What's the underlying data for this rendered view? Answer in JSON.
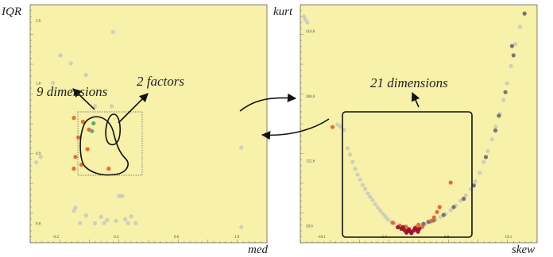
{
  "colors": {
    "panel_bg": "#f7f1a9",
    "point_gray": "#c8c8c0",
    "point_dark": "#6e6e6e",
    "point_orange": "#e8632a",
    "point_green": "#58a86a",
    "point_red": "#9a1030",
    "ink": "#111111"
  },
  "left_plot": {
    "xlabel": "med",
    "ylabel": "IQR",
    "x_ticks": [
      "-0.2",
      "0.2",
      "0.6",
      "1.0"
    ],
    "y_ticks": [
      "2.6",
      "1.8",
      "0.9",
      "0.0"
    ],
    "annotations": {
      "dimensions": "9 dimensions",
      "factors": "2 factors"
    }
  },
  "right_plot": {
    "xlabel": "skew",
    "ylabel": "kurt",
    "x_ticks": [
      "-18.1",
      "-5.7",
      "6.8",
      "19.1"
    ],
    "y_ticks": [
      "416.6",
      "284.6",
      "152.6",
      "20.6"
    ],
    "annotations": {
      "dimensions": "21 dimensions"
    }
  },
  "chart_data": [
    {
      "type": "scatter",
      "xlabel": "med",
      "ylabel": "IQR",
      "x_ticks": [
        -0.2,
        0.2,
        0.6,
        1.0
      ],
      "y_ticks": [
        0.0,
        0.9,
        1.8,
        2.6
      ],
      "xlim": [
        -0.37,
        1.2
      ],
      "ylim": [
        -0.25,
        2.8
      ],
      "grid": false,
      "series": [
        {
          "color": "gray",
          "points": [
            [
              0.18,
              2.45
            ],
            [
              -0.1,
              2.05
            ],
            [
              -0.17,
              2.15
            ],
            [
              0.0,
              1.9
            ],
            [
              -0.22,
              1.8
            ],
            [
              -0.3,
              0.85
            ],
            [
              -0.33,
              0.78
            ],
            [
              0.06,
              1.5
            ],
            [
              0.17,
              1.5
            ],
            [
              1.03,
              0.97
            ],
            [
              0.22,
              0.35
            ],
            [
              0.24,
              0.35
            ],
            [
              -0.07,
              0.2
            ],
            [
              -0.08,
              0.16
            ],
            [
              0.0,
              0.1
            ],
            [
              0.1,
              0.08
            ],
            [
              0.14,
              0.04
            ],
            [
              0.2,
              0.03
            ],
            [
              0.26,
              0.05
            ],
            [
              0.3,
              0.09
            ],
            [
              -0.04,
              0.0
            ],
            [
              0.06,
              0.0
            ],
            [
              0.12,
              0.0
            ],
            [
              0.28,
              0.0
            ],
            [
              0.33,
              0.0
            ],
            [
              1.03,
              -0.05
            ]
          ]
        },
        {
          "color": "orange",
          "points": [
            [
              -0.08,
              1.35
            ],
            [
              -0.02,
              1.3
            ],
            [
              -0.05,
              1.1
            ],
            [
              0.01,
              0.95
            ],
            [
              -0.07,
              0.85
            ],
            [
              -0.03,
              0.75
            ],
            [
              -0.08,
              0.7
            ],
            [
              0.02,
              1.2
            ],
            [
              0.15,
              0.7
            ]
          ]
        },
        {
          "color": "green",
          "points": [
            [
              0.05,
              1.28
            ],
            [
              0.04,
              1.18
            ]
          ]
        }
      ]
    },
    {
      "type": "scatter",
      "xlabel": "skew",
      "ylabel": "kurt",
      "x_ticks": [
        -18.1,
        -5.7,
        6.8,
        19.1
      ],
      "y_ticks": [
        20.6,
        152.6,
        284.6,
        416.6
      ],
      "xlim": [
        -22.3,
        24.8
      ],
      "ylim": [
        -14.5,
        470
      ],
      "grid": false,
      "series": [
        {
          "color": "gray",
          "points": [
            [
              -21.6,
              446
            ],
            [
              -21.3,
              440
            ],
            [
              -20.9,
              434
            ],
            [
              -14.9,
              226
            ],
            [
              -14.3,
              222
            ],
            [
              -13.6,
              215
            ],
            [
              -12.9,
              178
            ],
            [
              -12.4,
              165
            ],
            [
              -11.9,
              150
            ],
            [
              -11.4,
              136
            ],
            [
              -10.9,
              124
            ],
            [
              -10.4,
              114
            ],
            [
              -9.9,
              103
            ],
            [
              -9.4,
              95
            ],
            [
              -8.9,
              86
            ],
            [
              -8.4,
              79
            ],
            [
              -7.9,
              72
            ],
            [
              -7.4,
              64
            ],
            [
              -6.9,
              57
            ],
            [
              -6.4,
              51
            ],
            [
              -5.9,
              45
            ],
            [
              -5.4,
              39
            ],
            [
              -4.9,
              33
            ],
            [
              -4.2,
              28
            ],
            [
              -3.6,
              25
            ],
            [
              -2.6,
              21
            ],
            [
              -1.6,
              19
            ],
            [
              0.6,
              19
            ],
            [
              1.6,
              21
            ],
            [
              2.6,
              23
            ],
            [
              3.6,
              27
            ],
            [
              4.6,
              32
            ],
            [
              5.6,
              38
            ],
            [
              6.6,
              44
            ],
            [
              7.6,
              52
            ],
            [
              8.6,
              61
            ],
            [
              9.6,
              71
            ],
            [
              10.6,
              82
            ],
            [
              11.6,
              95
            ],
            [
              12.5,
              110
            ],
            [
              13.4,
              128
            ],
            [
              14.2,
              150
            ],
            [
              15.0,
              172
            ],
            [
              15.8,
              196
            ],
            [
              16.6,
              222
            ],
            [
              17.4,
              248
            ],
            [
              18.1,
              276
            ],
            [
              18.8,
              310
            ],
            [
              19.6,
              345
            ],
            [
              20.5,
              390
            ],
            [
              21.4,
              425
            ]
          ]
        },
        {
          "color": "dark",
          "points": [
            [
              16.5,
              214
            ],
            [
              17.2,
              244
            ],
            [
              18.5,
              292
            ],
            [
              20.1,
              367
            ],
            [
              22.3,
              452
            ],
            [
              19.8,
              386
            ],
            [
              3.2,
              28
            ],
            [
              6.2,
              42
            ],
            [
              8.2,
              58
            ],
            [
              10.2,
              75
            ],
            [
              12.2,
              102
            ],
            [
              14.6,
              160
            ],
            [
              4.2,
              31
            ],
            [
              2.2,
              24
            ]
          ]
        },
        {
          "color": "orange",
          "points": [
            [
              -15.9,
              221
            ],
            [
              7.6,
              108
            ],
            [
              -3.9,
              26
            ],
            [
              -2.5,
              20
            ],
            [
              -1.3,
              18
            ],
            [
              0.7,
              16
            ],
            [
              2.0,
              18
            ],
            [
              3.8,
              30
            ],
            [
              4.3,
              37
            ],
            [
              4.9,
              48
            ],
            [
              5.4,
              58
            ],
            [
              1.2,
              22
            ]
          ]
        },
        {
          "color": "red",
          "points": [
            [
              -2.9,
              17
            ],
            [
              -2.2,
              14
            ],
            [
              -1.6,
              11
            ],
            [
              -1.0,
              9
            ],
            [
              -0.4,
              8
            ],
            [
              0.2,
              10
            ],
            [
              0.8,
              12
            ],
            [
              1.4,
              14
            ],
            [
              -1.9,
              17
            ],
            [
              -0.7,
              13
            ],
            [
              0.5,
              15
            ],
            [
              -0.2,
              5
            ],
            [
              -1.2,
              6
            ],
            [
              1.1,
              8
            ]
          ]
        }
      ]
    }
  ]
}
